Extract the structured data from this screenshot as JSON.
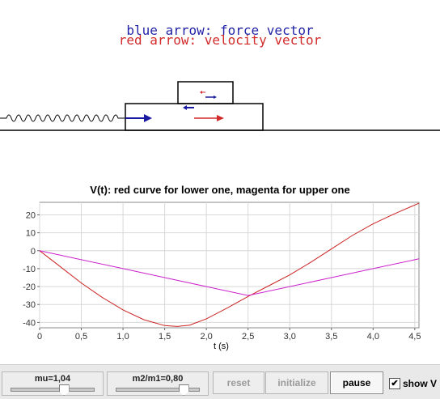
{
  "simulation": {
    "legend_blue": "blue arrow: force vector",
    "legend_red": "red arrow: velocity vector",
    "colors": {
      "force": "#1a1aa0",
      "velocity": "#d22a2a",
      "outline": "#000000"
    }
  },
  "chart": {
    "title": "V(t): red curve for lower one, magenta for upper one",
    "xlabel": "t (s)"
  },
  "chart_data": {
    "type": "line",
    "title": "V(t): red curve for lower one, magenta for upper one",
    "xlabel": "t (s)",
    "ylabel": "",
    "xlim": [
      0,
      4.55
    ],
    "ylim": [
      -43,
      27
    ],
    "xticks": [
      0,
      0.5,
      1.0,
      1.5,
      2.0,
      2.5,
      3.0,
      3.5,
      4.0,
      4.5
    ],
    "xtick_labels": [
      "0",
      "0,5",
      "1,0",
      "1,5",
      "2,0",
      "2,5",
      "3,0",
      "3,5",
      "4,0",
      "4,5"
    ],
    "yticks": [
      -40,
      -30,
      -20,
      -10,
      0,
      10,
      20
    ],
    "ytick_labels": [
      "-40",
      "-30",
      "-20",
      "-10",
      "0",
      "10",
      "20"
    ],
    "grid": true,
    "series": [
      {
        "color": "#cc2222",
        "x": [
          0,
          0.25,
          0.5,
          0.75,
          1.0,
          1.25,
          1.5,
          1.65,
          1.8,
          2.0,
          2.25,
          2.5,
          2.75,
          3.0,
          3.25,
          3.5,
          3.75,
          4.0,
          4.25,
          4.55
        ],
        "y": [
          0,
          -9,
          -18,
          -26,
          -33,
          -38.5,
          -41.8,
          -42.3,
          -41.5,
          -38,
          -32,
          -25.5,
          -19.5,
          -13.5,
          -6.5,
          1,
          8.5,
          15,
          20.5,
          26.5
        ]
      },
      {
        "color": "#cc22cc",
        "x": [
          0,
          0.5,
          1.0,
          1.5,
          2.0,
          2.5,
          3.0,
          3.5,
          4.0,
          4.55
        ],
        "y": [
          0,
          -5,
          -10,
          -15,
          -20,
          -25,
          -20,
          -15,
          -10,
          -4.5
        ]
      }
    ]
  },
  "controls": {
    "mu_label": "mu=1,04",
    "mu_value": 1.04,
    "mu_fraction": 0.61,
    "ratio_label": "m2/m1=0,80",
    "ratio_value": 0.8,
    "ratio_fraction": 0.78,
    "reset_label": "reset",
    "initialize_label": "initialize",
    "pause_label": "pause",
    "showv_label": "show V",
    "showv_checked": true
  }
}
